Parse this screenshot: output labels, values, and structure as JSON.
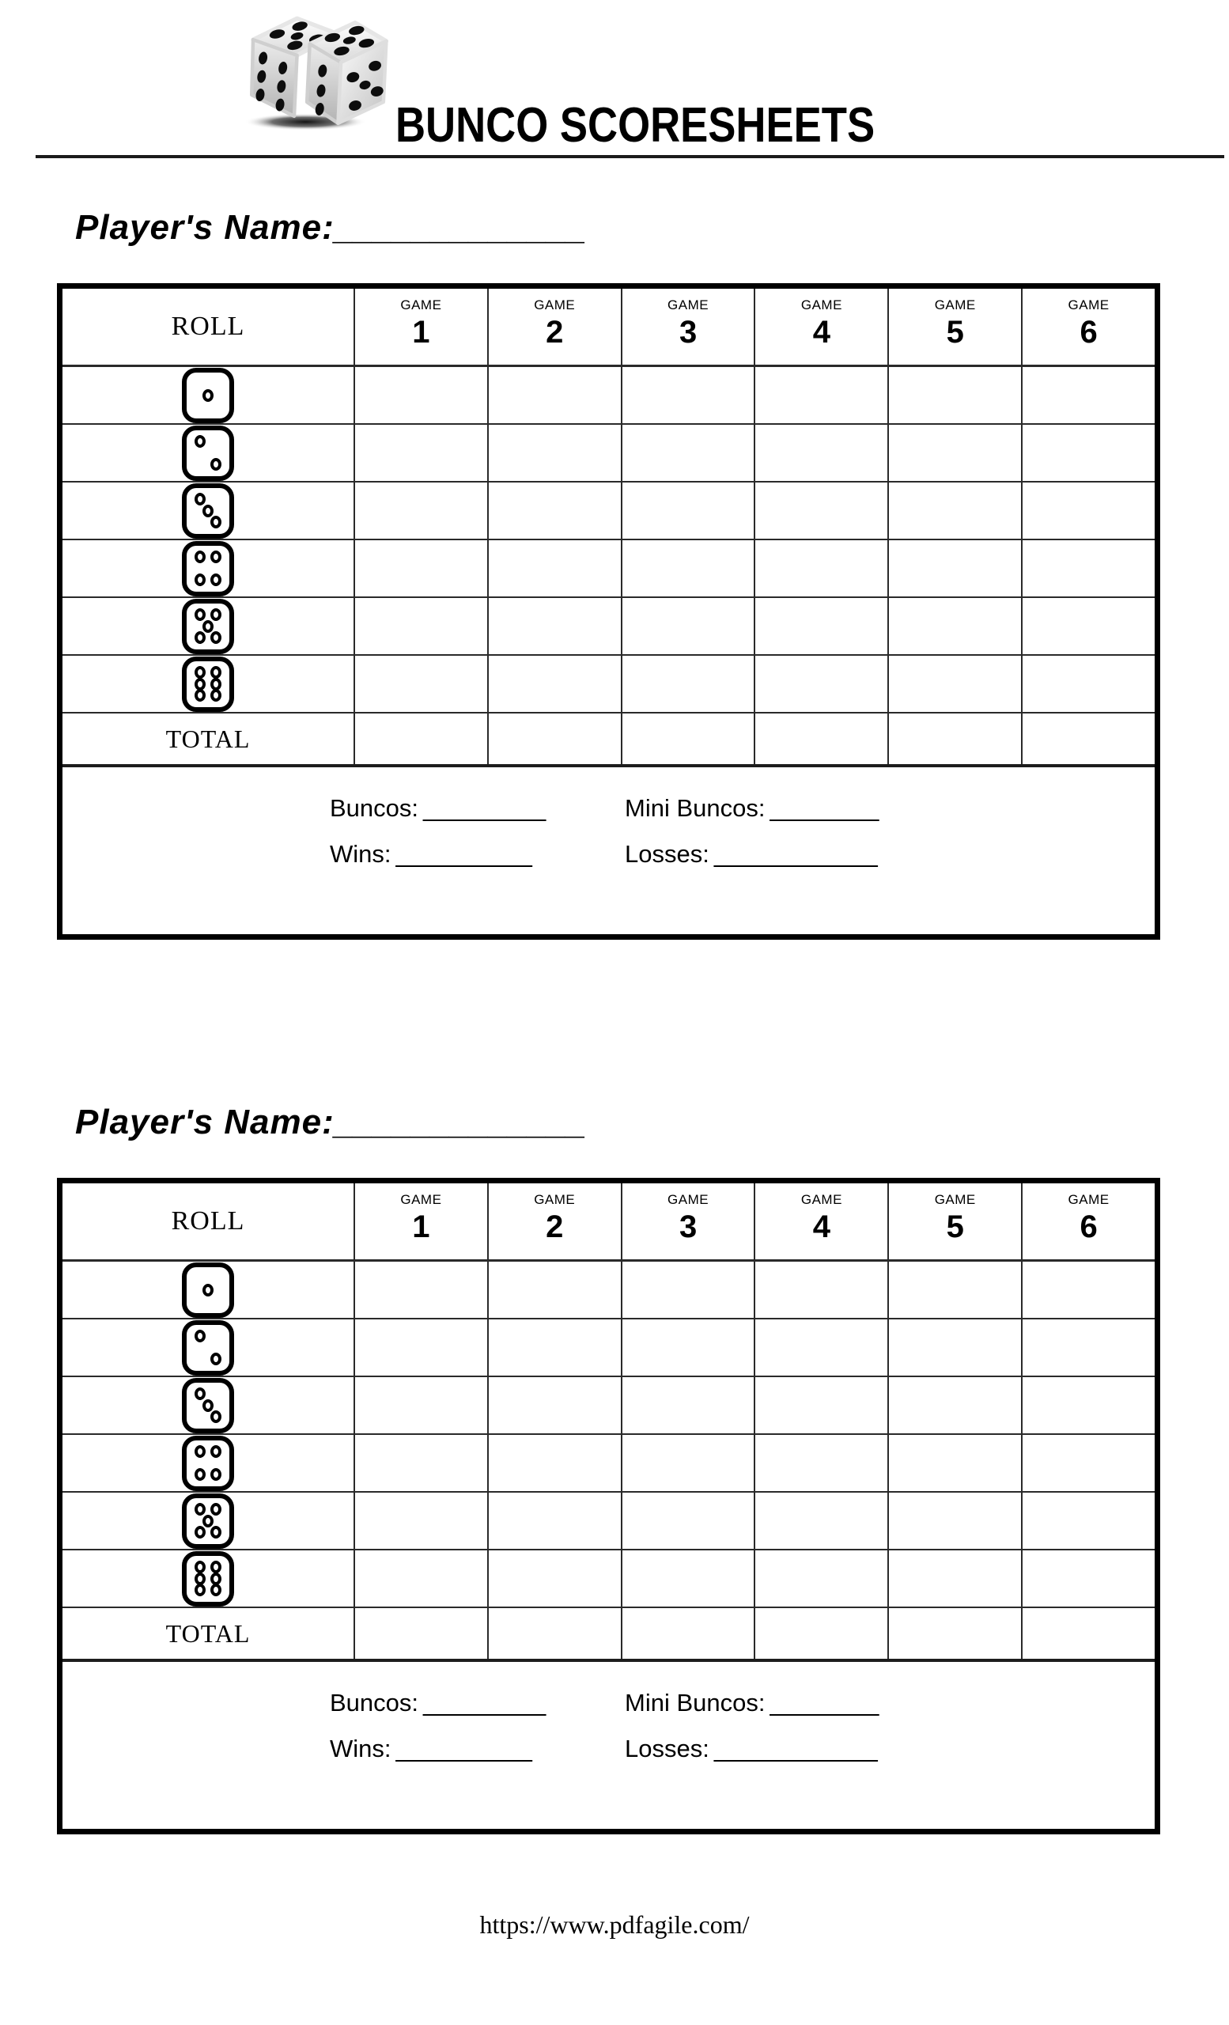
{
  "header": {
    "title": "BUNCO SCORESHEETS",
    "logo": "two-dice-with-shadow"
  },
  "scoresheet": {
    "player_label": "Player's Name:",
    "player_blank": "_____________",
    "table": {
      "roll_header": "ROLL",
      "game_label": "GAME",
      "game_numbers": [
        "1",
        "2",
        "3",
        "4",
        "5",
        "6"
      ],
      "dice_rows": [
        1,
        2,
        3,
        4,
        5,
        6
      ],
      "total_label": "TOTAL"
    },
    "summary": {
      "buncos_label": "Buncos:",
      "buncos_blank": "_________",
      "mini_buncos_label": "Mini Buncos:",
      "mini_buncos_blank": "________",
      "wins_label": "Wins:",
      "wins_blank": "__________",
      "losses_label": "Losses:",
      "losses_blank": "____________"
    }
  },
  "sheets": [
    {
      "id": "sheet-1"
    },
    {
      "id": "sheet-2"
    }
  ],
  "footer": {
    "url": "https://www.pdfagile.com/"
  },
  "colors": {
    "ink": "#000000",
    "grid_line": "#2a2a2a",
    "background": "#ffffff"
  }
}
